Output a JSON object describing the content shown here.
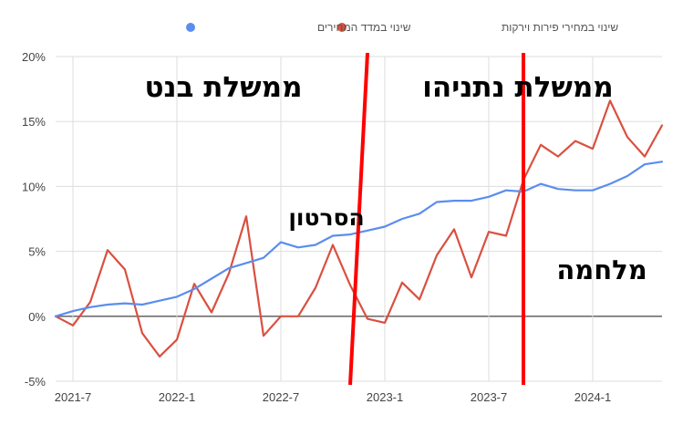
{
  "chart_data": {
    "type": "line",
    "x": [
      "2021-6",
      "2021-7",
      "2021-8",
      "2021-9",
      "2021-10",
      "2021-11",
      "2021-12",
      "2022-1",
      "2022-2",
      "2022-3",
      "2022-4",
      "2022-5",
      "2022-6",
      "2022-7",
      "2022-8",
      "2022-9",
      "2022-10",
      "2022-11",
      "2022-12",
      "2023-1",
      "2023-2",
      "2023-3",
      "2023-4",
      "2023-5",
      "2023-6",
      "2023-7",
      "2023-8",
      "2023-9",
      "2023-10",
      "2023-11",
      "2023-12",
      "2024-1",
      "2024-2",
      "2024-3",
      "2024-4",
      "2024-5"
    ],
    "x_ticks": [
      "2021-7",
      "2022-1",
      "2022-7",
      "2023-1",
      "2023-7",
      "2024-1"
    ],
    "y_ticks": [
      "-5%",
      "0%",
      "5%",
      "10%",
      "15%",
      "20%"
    ],
    "ylim": [
      -5,
      20
    ],
    "grid": true,
    "legend_position": "top",
    "series": [
      {
        "name": "שינוי במדד המחירים",
        "color": "#5b8def",
        "values": [
          0.0,
          0.4,
          0.7,
          0.9,
          1.0,
          0.9,
          1.2,
          1.5,
          2.1,
          2.9,
          3.7,
          4.1,
          4.5,
          5.7,
          5.3,
          5.5,
          6.2,
          6.3,
          6.6,
          6.9,
          7.5,
          7.9,
          8.8,
          8.9,
          8.9,
          9.2,
          9.7,
          9.6,
          10.2,
          9.8,
          9.7,
          9.7,
          10.2,
          10.8,
          11.7,
          11.9
        ]
      },
      {
        "name": "שינוי במחירי פירות וירקות",
        "color": "#d9503f",
        "values": [
          0.0,
          -0.7,
          1.1,
          5.1,
          3.6,
          -1.3,
          -3.1,
          -1.8,
          2.5,
          0.3,
          3.3,
          7.7,
          -1.5,
          0.0,
          0.0,
          2.2,
          5.5,
          2.4,
          -0.2,
          -0.5,
          2.6,
          1.3,
          4.7,
          6.7,
          3.0,
          6.5,
          6.2,
          10.5,
          13.2,
          12.3,
          13.5,
          12.9,
          16.6,
          13.8,
          12.3,
          14.7
        ]
      }
    ],
    "vertical_markers": [
      {
        "top_x": "2022-12",
        "bottom_x": "2022-11",
        "color": "#ff0000"
      },
      {
        "top_x": "2023-9",
        "bottom_x": "2023-9",
        "color": "#ff0000"
      }
    ]
  },
  "annotations": {
    "bennett": "ממשלת בנט",
    "netanyahu": "ממשלת נתניהו",
    "video": "הסרטון",
    "war": "מלחמה"
  }
}
